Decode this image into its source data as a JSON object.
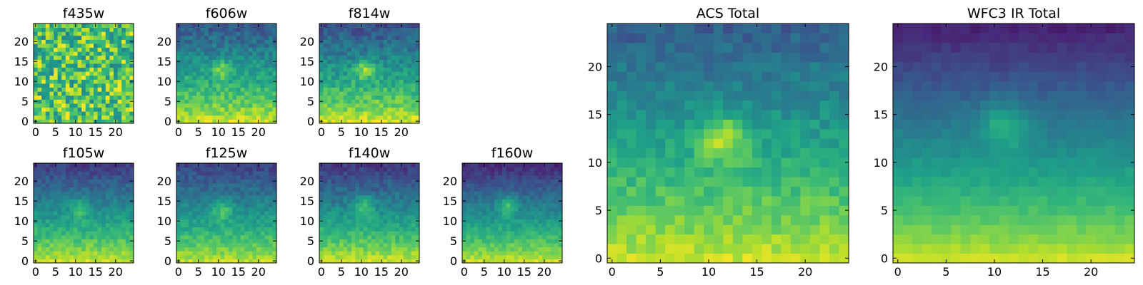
{
  "figure": {
    "colormap": "viridis",
    "colormap_stops": [
      "#440154",
      "#482878",
      "#3e4989",
      "#31688e",
      "#26828e",
      "#1f9e89",
      "#35b779",
      "#6ece58",
      "#b5de2b",
      "#fde725"
    ],
    "frame_color": "#000000",
    "background": "#ffffff"
  },
  "chart_data": [
    {
      "id": "f435w",
      "type": "heatmap",
      "title": "f435w",
      "grid_size": 25,
      "xlim": [
        -0.5,
        24.5
      ],
      "ylim": [
        -0.5,
        24.5
      ],
      "xticks": [
        0,
        5,
        10,
        15,
        20
      ],
      "yticks": [
        0,
        5,
        10,
        15,
        20
      ],
      "origin": "lower",
      "grid": false,
      "pattern": {
        "base_top": 0.72,
        "base_bottom": 0.74,
        "noise": 0.55,
        "blob_x": 12,
        "blob_y": 13,
        "blob_amp": 0.0,
        "seed": 11
      }
    },
    {
      "id": "f606w",
      "type": "heatmap",
      "title": "f606w",
      "grid_size": 25,
      "xlim": [
        -0.5,
        24.5
      ],
      "ylim": [
        -0.5,
        24.5
      ],
      "xticks": [
        0,
        5,
        10,
        15,
        20
      ],
      "yticks": [
        0,
        5,
        10,
        15,
        20
      ],
      "origin": "lower",
      "grid": false,
      "pattern": {
        "base_top": 0.28,
        "base_bottom": 0.92,
        "noise": 0.2,
        "blob_x": 11,
        "blob_y": 13,
        "blob_amp": 0.25,
        "seed": 23
      }
    },
    {
      "id": "f814w",
      "type": "heatmap",
      "title": "f814w",
      "grid_size": 25,
      "xlim": [
        -0.5,
        24.5
      ],
      "ylim": [
        -0.5,
        24.5
      ],
      "xticks": [
        0,
        5,
        10,
        15,
        20
      ],
      "yticks": [
        0,
        5,
        10,
        15,
        20
      ],
      "origin": "lower",
      "grid": false,
      "pattern": {
        "base_top": 0.25,
        "base_bottom": 0.93,
        "noise": 0.2,
        "blob_x": 11,
        "blob_y": 13,
        "blob_amp": 0.3,
        "seed": 37
      }
    },
    {
      "id": "f105w",
      "type": "heatmap",
      "title": "f105w",
      "grid_size": 25,
      "xlim": [
        -0.5,
        24.5
      ],
      "ylim": [
        -0.5,
        24.5
      ],
      "xticks": [
        0,
        5,
        10,
        15,
        20
      ],
      "yticks": [
        0,
        5,
        10,
        15,
        20
      ],
      "origin": "lower",
      "grid": false,
      "pattern": {
        "base_top": 0.18,
        "base_bottom": 0.92,
        "noise": 0.14,
        "blob_x": 11,
        "blob_y": 13,
        "blob_amp": 0.22,
        "seed": 41
      }
    },
    {
      "id": "f125w",
      "type": "heatmap",
      "title": "f125w",
      "grid_size": 25,
      "xlim": [
        -0.5,
        24.5
      ],
      "ylim": [
        -0.5,
        24.5
      ],
      "xticks": [
        0,
        5,
        10,
        15,
        20
      ],
      "yticks": [
        0,
        5,
        10,
        15,
        20
      ],
      "origin": "lower",
      "grid": false,
      "pattern": {
        "base_top": 0.2,
        "base_bottom": 0.9,
        "noise": 0.14,
        "blob_x": 11,
        "blob_y": 13,
        "blob_amp": 0.22,
        "seed": 53
      }
    },
    {
      "id": "f140w",
      "type": "heatmap",
      "title": "f140w",
      "grid_size": 25,
      "xlim": [
        -0.5,
        24.5
      ],
      "ylim": [
        -0.5,
        24.5
      ],
      "xticks": [
        0,
        5,
        10,
        15,
        20
      ],
      "yticks": [
        0,
        5,
        10,
        15,
        20
      ],
      "origin": "lower",
      "grid": false,
      "pattern": {
        "base_top": 0.16,
        "base_bottom": 0.93,
        "noise": 0.14,
        "blob_x": 11,
        "blob_y": 14,
        "blob_amp": 0.26,
        "seed": 67
      }
    },
    {
      "id": "f160w",
      "type": "heatmap",
      "title": "f160w",
      "grid_size": 25,
      "xlim": [
        -0.5,
        24.5
      ],
      "ylim": [
        -0.5,
        24.5
      ],
      "xticks": [
        0,
        5,
        10,
        15,
        20
      ],
      "yticks": [
        0,
        5,
        10,
        15,
        20
      ],
      "origin": "lower",
      "grid": false,
      "pattern": {
        "base_top": 0.12,
        "base_bottom": 0.92,
        "noise": 0.12,
        "blob_x": 11,
        "blob_y": 14,
        "blob_amp": 0.28,
        "seed": 79
      }
    },
    {
      "id": "acs_total",
      "type": "heatmap",
      "title": "ACS Total",
      "grid_size": 25,
      "xlim": [
        -0.5,
        24.5
      ],
      "ylim": [
        -0.5,
        24.5
      ],
      "xticks": [
        0,
        5,
        10,
        15,
        20
      ],
      "yticks": [
        0,
        5,
        10,
        15,
        20
      ],
      "origin": "lower",
      "grid": false,
      "pattern": {
        "base_top": 0.3,
        "base_bottom": 0.92,
        "noise": 0.14,
        "blob_x": 11.5,
        "blob_y": 12.5,
        "blob_amp": 0.32,
        "seed": 97
      }
    },
    {
      "id": "wfc3_ir_total",
      "type": "heatmap",
      "title": "WFC3 IR Total",
      "grid_size": 25,
      "xlim": [
        -0.5,
        24.5
      ],
      "ylim": [
        -0.5,
        24.5
      ],
      "xticks": [
        0,
        5,
        10,
        15,
        20
      ],
      "yticks": [
        0,
        5,
        10,
        15,
        20
      ],
      "origin": "lower",
      "grid": false,
      "pattern": {
        "base_top": 0.1,
        "base_bottom": 0.92,
        "noise": 0.06,
        "blob_x": 11,
        "blob_y": 14,
        "blob_amp": 0.22,
        "seed": 113
      }
    }
  ]
}
